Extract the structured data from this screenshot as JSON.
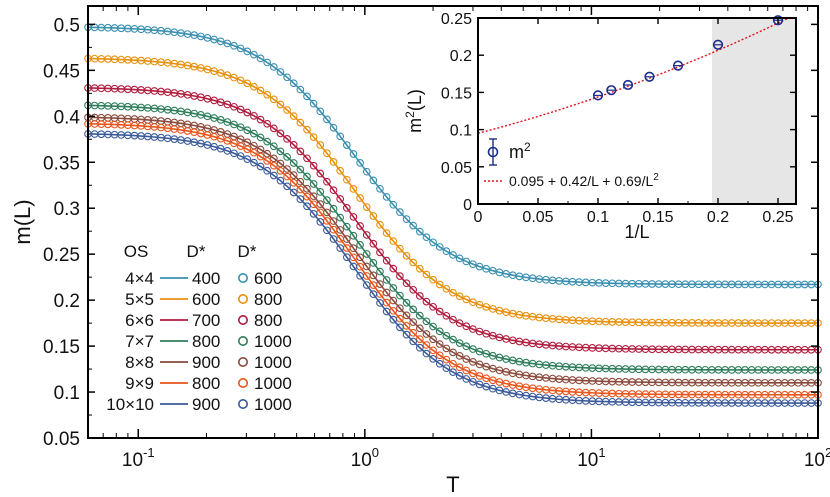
{
  "chart_data": [
    {
      "type": "line",
      "xscale": "log",
      "xlim": [
        0.06,
        100
      ],
      "ylim": [
        0.05,
        0.52
      ],
      "xlabel": "T",
      "ylabel": "m(L)",
      "x_ticks": [
        0.1,
        1,
        10,
        100
      ],
      "x_tick_labels": [
        {
          "base": "10",
          "exp": "-1"
        },
        {
          "base": "10",
          "exp": "0"
        },
        {
          "base": "10",
          "exp": "1"
        },
        {
          "base": "10",
          "exp": "2"
        }
      ],
      "y_ticks": [
        0.05,
        0.1,
        0.15,
        0.2,
        0.25,
        0.3,
        0.35,
        0.4,
        0.45,
        0.5
      ],
      "y_tick_labels": [
        "0.05",
        "0.1",
        "0.15",
        "0.2",
        "0.25",
        "0.3",
        "0.35",
        "0.4",
        "0.45",
        "0.5"
      ],
      "transition_T": 0.9,
      "transition_width": 0.85,
      "legend": {
        "placement": "bottom-left",
        "headers": [
          "OS",
          "D*",
          "D*"
        ],
        "rows": [
          {
            "os": "4×4",
            "d_line": "400",
            "d_marker": "600"
          },
          {
            "os": "5×5",
            "d_line": "600",
            "d_marker": "800"
          },
          {
            "os": "6×6",
            "d_line": "700",
            "d_marker": "800"
          },
          {
            "os": "7×7",
            "d_line": "800",
            "d_marker": "1000"
          },
          {
            "os": "8×8",
            "d_line": "900",
            "d_marker": "1000"
          },
          {
            "os": "9×9",
            "d_line": "800",
            "d_marker": "1000"
          },
          {
            "os": "10×10",
            "d_line": "900",
            "d_marker": "1000"
          }
        ]
      },
      "series": [
        {
          "name": "4×4",
          "color": "#3a8fb0",
          "m_low": 0.498,
          "m_high": 0.217
        },
        {
          "name": "5×5",
          "color": "#e8900c",
          "m_low": 0.464,
          "m_high": 0.175
        },
        {
          "name": "6×6",
          "color": "#b01c3e",
          "m_low": 0.432,
          "m_high": 0.146
        },
        {
          "name": "7×7",
          "color": "#2e7d5b",
          "m_low": 0.413,
          "m_high": 0.124
        },
        {
          "name": "8×8",
          "color": "#8a4a3c",
          "m_low": 0.4,
          "m_high": 0.11
        },
        {
          "name": "9×9",
          "color": "#e8561c",
          "m_low": 0.393,
          "m_high": 0.097
        },
        {
          "name": "10×10",
          "color": "#3b5a9a",
          "m_low": 0.382,
          "m_high": 0.088
        }
      ]
    },
    {
      "type": "scatter",
      "xlim": [
        0,
        0.265
      ],
      "ylim": [
        0,
        0.25
      ],
      "xlabel": "1/L",
      "ylabel": {
        "base": "m",
        "sup": "2",
        "rest": "(L)"
      },
      "x_ticks": [
        0,
        0.05,
        0.1,
        0.15,
        0.2,
        0.25
      ],
      "x_tick_labels": [
        "0",
        "0.05",
        "0.1",
        "0.15",
        "0.2",
        "0.25"
      ],
      "y_ticks": [
        0,
        0.05,
        0.1,
        0.15,
        0.2,
        0.25
      ],
      "y_tick_labels": [
        "0",
        "0.05",
        "0.1",
        "0.15",
        "0.2",
        "0.25"
      ],
      "shaded_x_range": [
        0.195,
        0.265
      ],
      "points_x": [
        0.1,
        0.1111,
        0.125,
        0.1429,
        0.1667,
        0.2,
        0.25
      ],
      "points_y": [
        0.146,
        0.153,
        0.16,
        0.171,
        0.186,
        0.214,
        0.247
      ],
      "marker_color": "#1c2c8c",
      "fit": {
        "a": 0.095,
        "b": 0.42,
        "c": 0.69,
        "color": "#e0141c"
      },
      "legend": {
        "placement": "lower-left",
        "marker_label": {
          "base": "m",
          "sup": "2"
        },
        "fit_label_main": "0.095 + 0.42/L + 0.69/L",
        "fit_label_sup": "2"
      }
    }
  ]
}
